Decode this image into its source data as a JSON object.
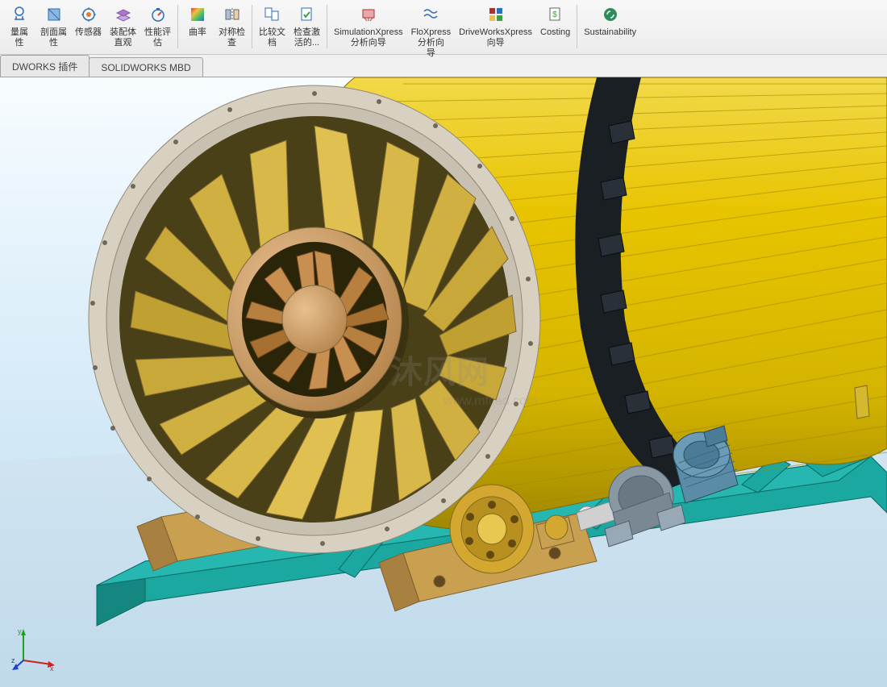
{
  "ribbon": {
    "items": [
      {
        "label": "量属\n性",
        "icon": "scale-icon",
        "color": "#2d6db2"
      },
      {
        "label": "剖面属\n性",
        "icon": "section-icon",
        "color": "#2d6db2"
      },
      {
        "label": "传感器",
        "icon": "sensor-icon",
        "color": "#2d6db2"
      },
      {
        "label": "装配体\n直观",
        "icon": "assembly-icon",
        "color": "#8a5aa8"
      },
      {
        "label": "性能评\n估",
        "icon": "perf-icon",
        "color": "#2d6db2"
      },
      {
        "label": "曲率",
        "icon": "curvature-icon",
        "color": "#multi"
      },
      {
        "label": "对称检\n查",
        "icon": "symmetry-icon",
        "color": "#666"
      },
      {
        "label": "比较文\n档",
        "icon": "compare-icon",
        "color": "#2d6db2"
      },
      {
        "label": "检查激\n活的...",
        "icon": "check-icon",
        "color": "#2d6db2"
      },
      {
        "label": "SimulationXpress\n分析向导",
        "icon": "sim-icon",
        "color": "#b03030"
      },
      {
        "label": "FloXpress\n分析向\n导",
        "icon": "flo-icon",
        "color": "#2d6db2"
      },
      {
        "label": "DriveWorksXpress\n向导",
        "icon": "drive-icon",
        "color": "#b03030"
      },
      {
        "label": "Costing",
        "icon": "costing-icon",
        "color": "#666"
      },
      {
        "label": "Sustainability",
        "icon": "sustain-icon",
        "color": "#2d8d5a"
      }
    ]
  },
  "tabs": [
    {
      "label": "DWORKS 插件"
    },
    {
      "label": "SOLIDWORKS MBD"
    }
  ],
  "hud_icons": [
    "zoom-fit-icon",
    "zoom-area-icon",
    "view-orient-icon",
    "display-style-icon",
    "hide-show-icon",
    "edit-appear-icon",
    "apply-scene-icon",
    "view-settings-icon",
    "section-view-icon",
    "ds-icon",
    "render-icon",
    "camera-icon",
    "x-icon"
  ],
  "watermark": {
    "text": "沐风网",
    "url": "www.mfcad.com"
  },
  "model": {
    "background_gradient": [
      "#f8fcff",
      "#cce5f5",
      "#b8dcef"
    ],
    "drum_color": "#e8c400",
    "drum_shade": "#c9a800",
    "drum_highlight": "#f2d94a",
    "ring_color": "#d8d0c0",
    "dark_band_color": "#1a1f24",
    "blade_color": "#d8a84a",
    "blade_shade": "#b8873a",
    "hub_color": "#d4a26a",
    "inner_dark": "#6b5a2a",
    "base_frame_color": "#1aa8a0",
    "base_frame_shade": "#148880",
    "pedestal_color": "#c9a050",
    "motor_color": "#5a8ca8",
    "motor_shade": "#3f6a82",
    "gearbox_color": "#8a98a4",
    "wheel_color": "#d4a830",
    "floor_color": "#dceaf4"
  }
}
